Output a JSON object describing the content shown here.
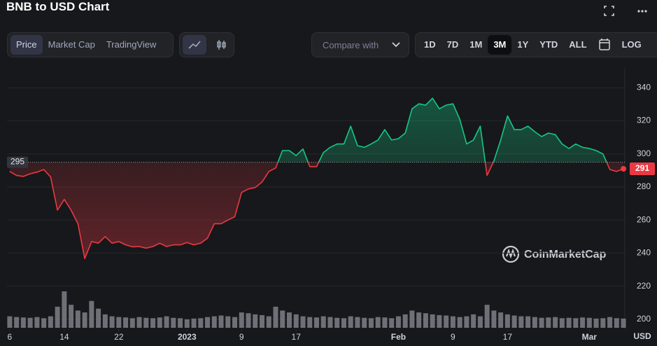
{
  "chart_data": {
    "type": "line",
    "title": "BNB to USD Chart",
    "y_unit": "USD",
    "x": [
      0,
      1,
      2,
      3,
      4,
      5,
      6,
      7,
      8,
      9,
      10,
      11,
      12,
      13,
      14,
      15,
      16,
      17,
      18,
      19,
      20,
      21,
      22,
      23,
      24,
      25,
      26,
      27,
      28,
      29,
      30,
      31,
      32,
      33,
      34,
      35,
      36,
      37,
      38,
      39,
      40,
      41,
      42,
      43,
      44,
      45,
      46,
      47,
      48,
      49,
      50,
      51,
      52,
      53,
      54,
      55,
      56,
      57,
      58,
      59,
      60,
      61,
      62,
      63,
      64,
      65,
      66,
      67,
      68,
      69,
      70,
      71,
      72,
      73,
      74,
      75,
      76,
      77,
      78,
      79,
      80,
      81,
      82,
      83,
      84,
      85,
      86,
      87,
      88,
      89,
      90
    ],
    "values": [
      289.4,
      287,
      286.4,
      288,
      289,
      290.6,
      286,
      266,
      272.5,
      266,
      257.8,
      236.7,
      247,
      246,
      250,
      246,
      247,
      245,
      243.8,
      244,
      243,
      244,
      246,
      244,
      245,
      245,
      246.4,
      245,
      246,
      249,
      257.8,
      257.8,
      260,
      262,
      276.7,
      278.8,
      279.7,
      283,
      289.4,
      291.5,
      302,
      302,
      299,
      303,
      292.3,
      292.3,
      300.8,
      304,
      306,
      306,
      316.8,
      305,
      304,
      306,
      308.4,
      314.7,
      308.4,
      309.2,
      312.6,
      327.3,
      330.3,
      329.5,
      333.7,
      327.3,
      329.5,
      330.3,
      321,
      306,
      308.4,
      316.8,
      287,
      295.7,
      308.4,
      323,
      314.7,
      314.7,
      316.8,
      313.4,
      310.5,
      312.6,
      311.7,
      306,
      303.3,
      306,
      304,
      303.3,
      302,
      300,
      290.6,
      289.4,
      291
    ],
    "volume": [
      30,
      28,
      27,
      26,
      28,
      25,
      30,
      55,
      95,
      60,
      45,
      40,
      70,
      50,
      35,
      30,
      28,
      27,
      25,
      28,
      26,
      25,
      27,
      30,
      26,
      25,
      22,
      24,
      25,
      28,
      30,
      32,
      30,
      28,
      40,
      38,
      35,
      33,
      30,
      55,
      45,
      40,
      35,
      30,
      28,
      27,
      30,
      28,
      26,
      25,
      30,
      28,
      26,
      25,
      28,
      27,
      25,
      30,
      35,
      45,
      40,
      38,
      35,
      33,
      32,
      30,
      28,
      30,
      35,
      30,
      60,
      45,
      40,
      35,
      32,
      30,
      30,
      28,
      26,
      27,
      28,
      25,
      26,
      25,
      27,
      26,
      24,
      25,
      28,
      25,
      24
    ],
    "baseline": 295,
    "up_color": "#16c784",
    "down_color": "#ea3943",
    "volume_color": "#8b8e96",
    "xlim": [
      -0.4,
      90.2
    ],
    "xticks": [
      {
        "value": 0,
        "label": "6"
      },
      {
        "value": 8,
        "label": "14"
      },
      {
        "value": 16,
        "label": "22"
      },
      {
        "value": 26,
        "label": "2023"
      },
      {
        "value": 34,
        "label": "9"
      },
      {
        "value": 42,
        "label": "17"
      },
      {
        "value": 57,
        "label": "Feb"
      },
      {
        "value": 65,
        "label": "9"
      },
      {
        "value": 73,
        "label": "17"
      },
      {
        "value": 85,
        "label": "Mar"
      }
    ],
    "ylim": [
      194,
      352
    ],
    "yticks": [
      200,
      220,
      240,
      260,
      280,
      300,
      320,
      340
    ],
    "grid": true
  },
  "toolbar": {
    "views": [
      "Price",
      "Market Cap",
      "TradingView"
    ],
    "compare": "Compare with",
    "ranges": [
      "1D",
      "7D",
      "1M",
      "3M",
      "1Y",
      "YTD",
      "ALL"
    ],
    "scale": "LOG"
  },
  "watermark": "CoinMarketCap"
}
